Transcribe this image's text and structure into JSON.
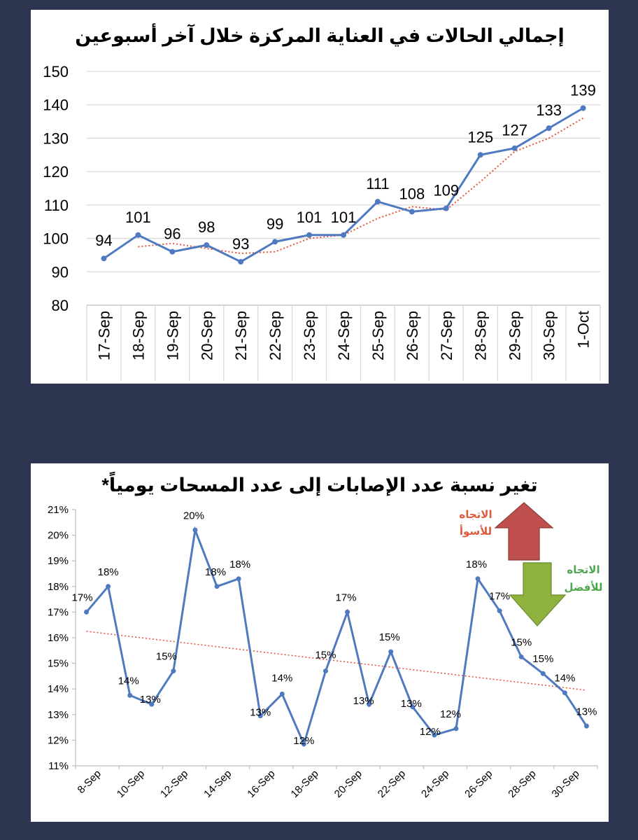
{
  "chart_data": [
    {
      "type": "line",
      "title": "إجمالي الحالات في العناية المركزة خلال آخر أسبوعين",
      "categories": [
        "17-Sep",
        "18-Sep",
        "19-Sep",
        "20-Sep",
        "21-Sep",
        "22-Sep",
        "23-Sep",
        "24-Sep",
        "25-Sep",
        "26-Sep",
        "27-Sep",
        "28-Sep",
        "29-Sep",
        "30-Sep",
        "1-Oct"
      ],
      "series": [
        {
          "values": [
            94,
            101,
            96,
            98,
            93,
            99,
            101,
            101,
            111,
            108,
            109,
            125,
            127,
            133,
            139
          ],
          "color": "#4f7ac0"
        }
      ],
      "data_labels": [
        "94",
        "101",
        "96",
        "98",
        "93",
        "99",
        "101",
        "101",
        "111",
        "108",
        "109",
        "125",
        "127",
        "133",
        "139"
      ],
      "trendline": {
        "type": "moving-average",
        "color": "#e8553d"
      },
      "ylim": [
        80,
        150
      ],
      "yticks": [
        "80",
        "90",
        "100",
        "110",
        "120",
        "130",
        "140",
        "150"
      ],
      "grid": true,
      "legend": "none"
    },
    {
      "type": "line",
      "title": "تغير نسبة عدد الإصابات إلى عدد المسحات يومياً*",
      "x_tick_labels": [
        "8-Sep",
        "10-Sep",
        "12-Sep",
        "14-Sep",
        "16-Sep",
        "18-Sep",
        "20-Sep",
        "22-Sep",
        "24-Sep",
        "26-Sep",
        "28-Sep",
        "30-Sep"
      ],
      "series": [
        {
          "values": [
            17.0,
            18.0,
            13.75,
            13.4,
            14.7,
            20.2,
            18.0,
            18.3,
            12.95,
            13.8,
            11.85,
            14.7,
            17.0,
            13.4,
            15.45,
            13.3,
            12.2,
            12.45,
            18.3,
            17.05,
            15.25,
            14.6,
            13.85,
            12.55
          ],
          "color": "#4f7ac0"
        }
      ],
      "data_labels": [
        "17%",
        "18%",
        "14%",
        "13%",
        "15%",
        "20%",
        "18%",
        "18%",
        "13%",
        "14%",
        "12%",
        "15%",
        "17%",
        "13%",
        "15%",
        "13%",
        "12%",
        "12%",
        "18%",
        "17%",
        "15%",
        "15%",
        "14%",
        "13%"
      ],
      "trendline": {
        "type": "linear",
        "from": 16.25,
        "to": 13.95,
        "color": "#e8553d"
      },
      "ylim": [
        11,
        21
      ],
      "yticks": [
        "11%",
        "12%",
        "13%",
        "14%",
        "15%",
        "16%",
        "17%",
        "18%",
        "19%",
        "20%",
        "21%"
      ],
      "grid": false,
      "legend": "none",
      "annotations": {
        "worse": {
          "line1": "الاتجاه",
          "line2": "للأسوأ",
          "color": "#e05a3a",
          "arrow_color": "#c0504d"
        },
        "better": {
          "line1": "الاتجاه",
          "line2": "للأفضل",
          "color": "#4ea64e",
          "arrow_color": "#8db33e"
        }
      }
    }
  ]
}
